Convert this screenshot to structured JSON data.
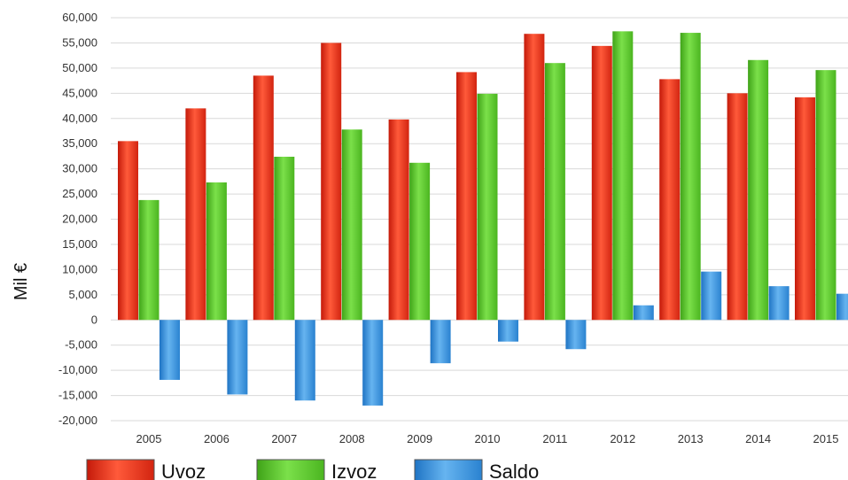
{
  "chart_data": {
    "type": "bar",
    "title": "",
    "xlabel": "",
    "ylabel": "Mil €",
    "ylim": [
      -20000,
      60000
    ],
    "ytick_step": 5000,
    "grid": true,
    "legend_position": "bottom-left",
    "categories": [
      "2005",
      "2006",
      "2007",
      "2008",
      "2009",
      "2010",
      "2011",
      "2012",
      "2013",
      "2014",
      "2015"
    ],
    "series": [
      {
        "name": "Uvoz",
        "color": "#e63a1e",
        "values": [
          35500,
          42000,
          48500,
          55000,
          39800,
          49200,
          56800,
          54400,
          47800,
          45000,
          44200
        ]
      },
      {
        "name": "Izvoz",
        "color": "#5cc82e",
        "values": [
          23800,
          27300,
          32400,
          37800,
          31200,
          44900,
          51000,
          57300,
          57000,
          51600,
          49600
        ]
      },
      {
        "name": "Saldo",
        "color": "#3a90d6",
        "values": [
          -11900,
          -14800,
          -16000,
          -17000,
          -8600,
          -4300,
          -5800,
          2900,
          9600,
          6700,
          5200
        ]
      }
    ],
    "ytick_labels": [
      "60,000",
      "55,000",
      "50,000",
      "45,000",
      "40,000",
      "35,000",
      "30,000",
      "25,000",
      "20,000",
      "15,000",
      "10,000",
      "5,000",
      "0",
      "-5,000",
      "-10,000",
      "-15,000",
      "-20,000"
    ]
  }
}
